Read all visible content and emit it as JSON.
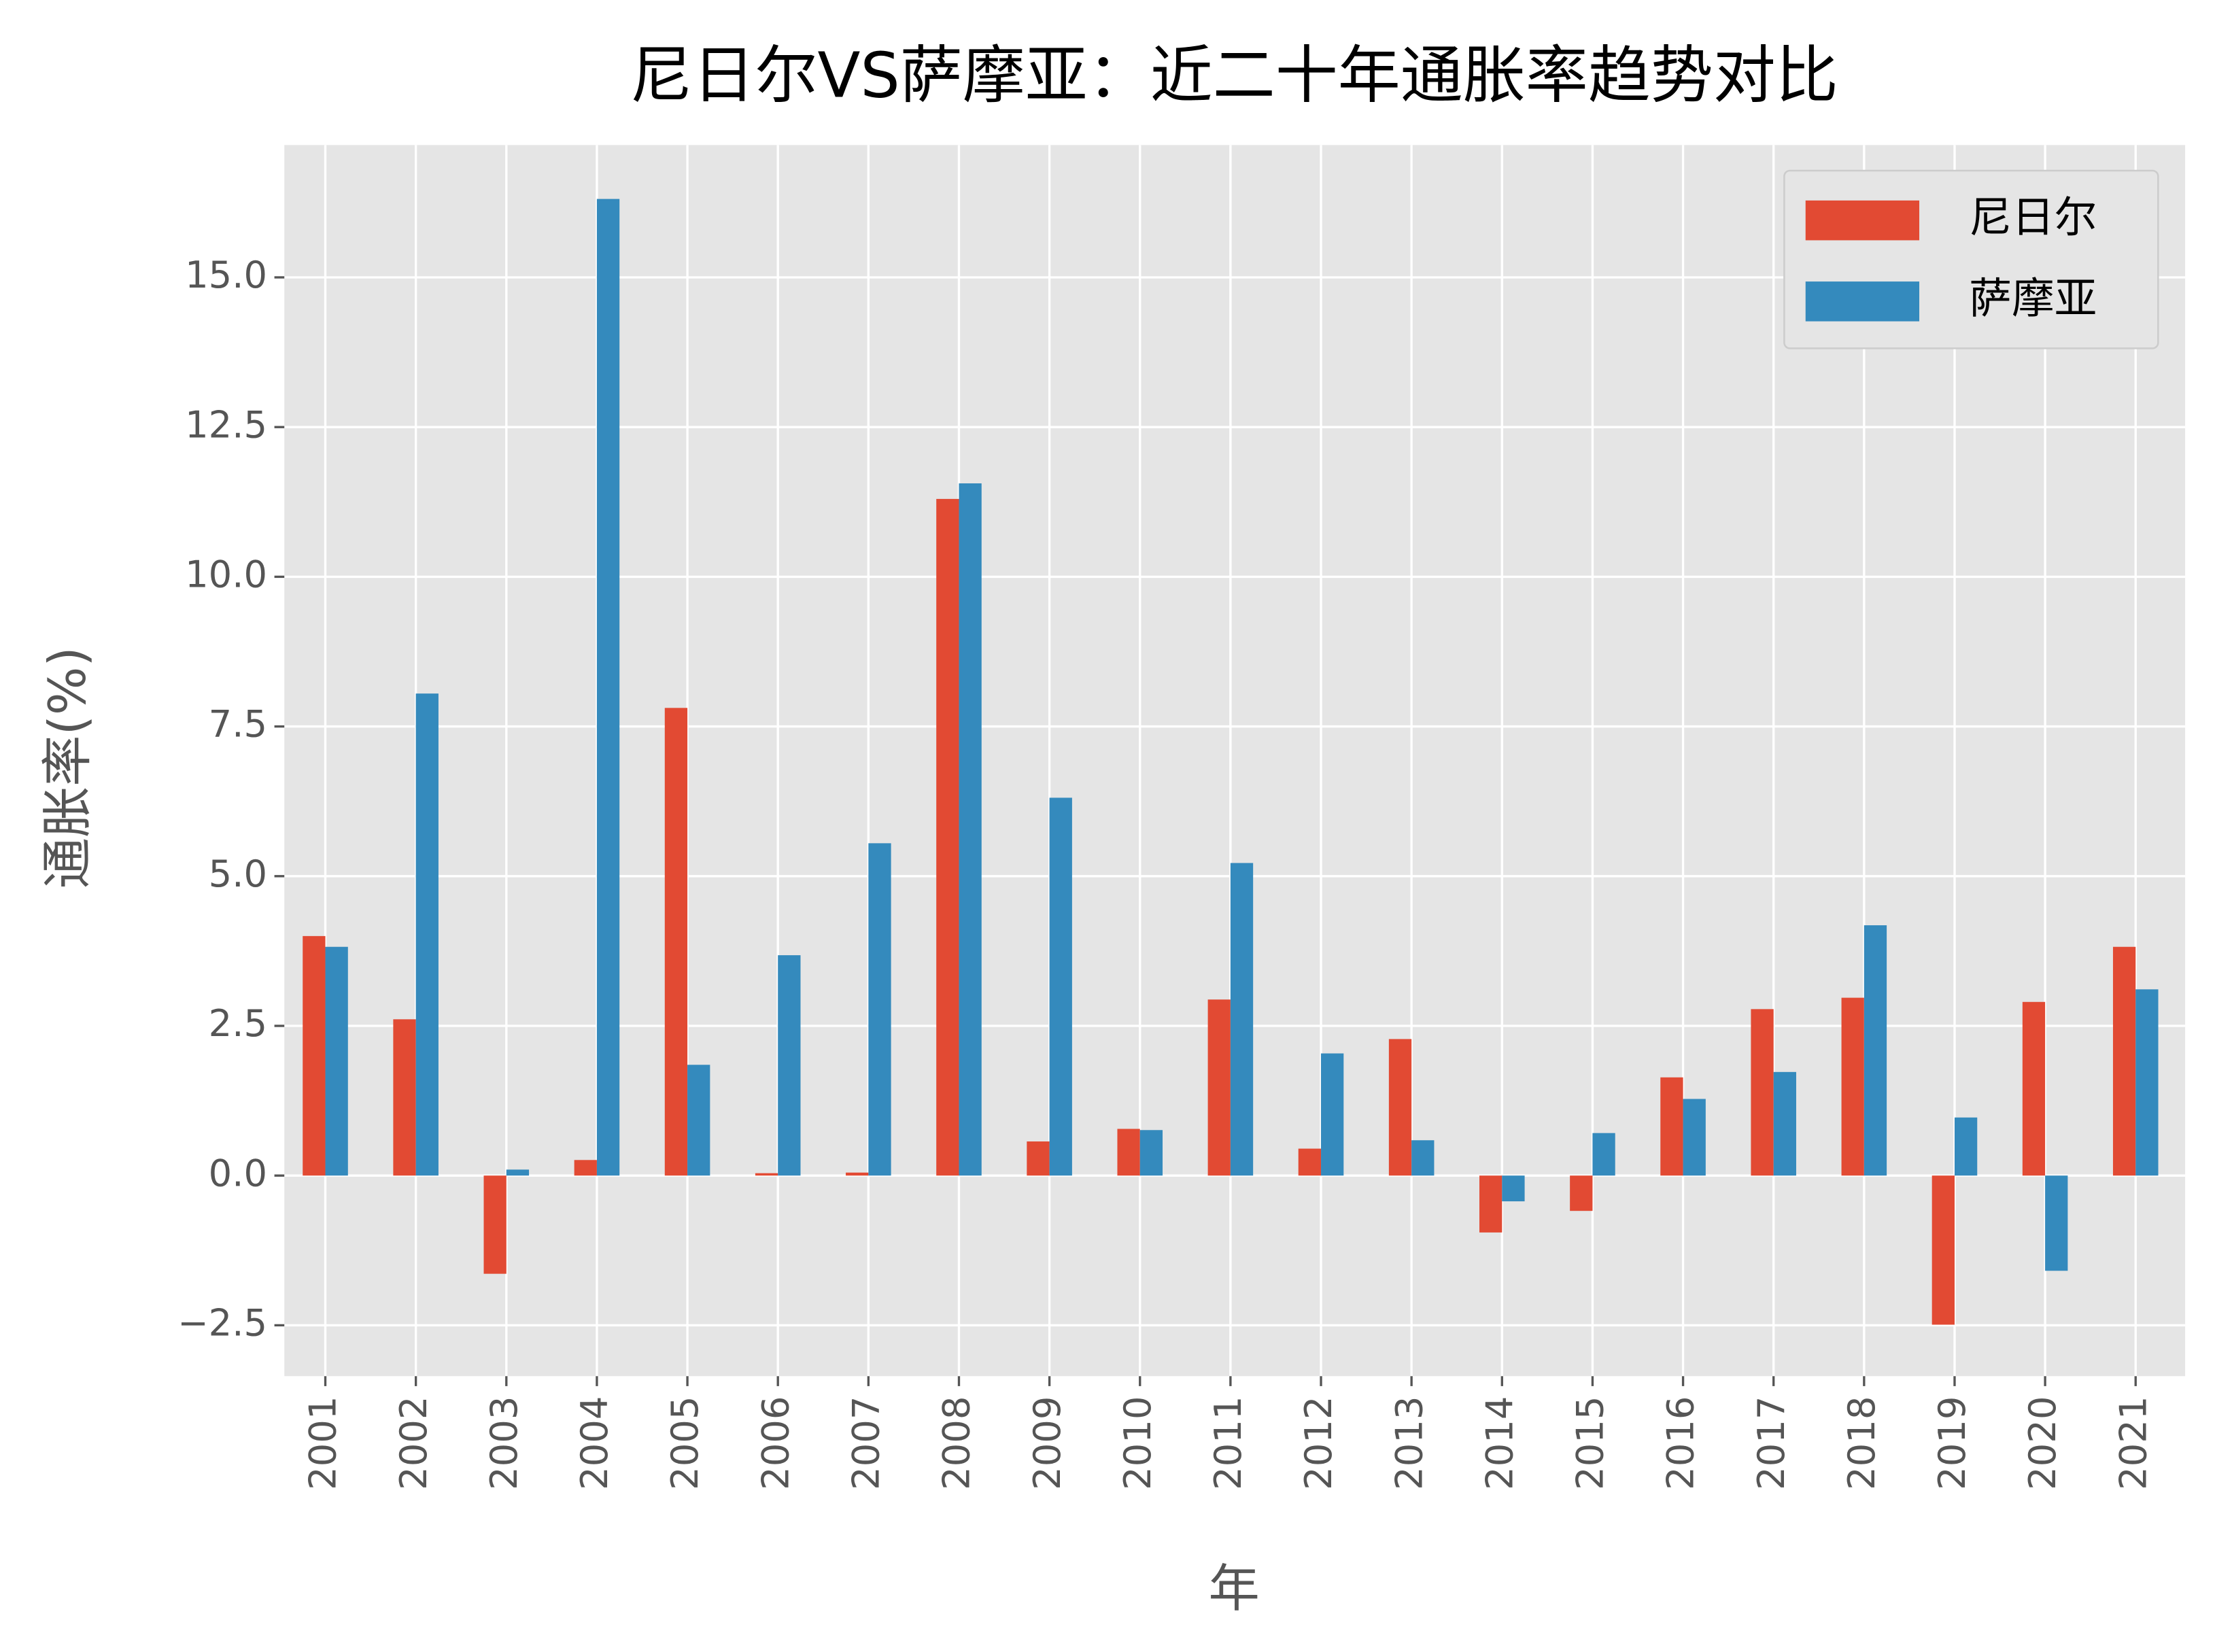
{
  "chart_data": {
    "type": "bar",
    "title": "尼日尔VS萨摩亚：近二十年通胀率趋势对比",
    "xlabel": "年",
    "ylabel": "通胀率(%)",
    "categories": [
      "2001",
      "2002",
      "2003",
      "2004",
      "2005",
      "2006",
      "2007",
      "2008",
      "2009",
      "2010",
      "2011",
      "2012",
      "2013",
      "2014",
      "2015",
      "2016",
      "2017",
      "2018",
      "2019",
      "2020",
      "2021"
    ],
    "series": [
      {
        "name": "尼日尔",
        "color": "#E24A33",
        "values": [
          4.0,
          2.61,
          -1.64,
          0.26,
          7.81,
          0.04,
          0.05,
          11.3,
          0.57,
          0.78,
          2.94,
          0.45,
          2.28,
          -0.95,
          -0.59,
          1.64,
          2.78,
          2.97,
          -2.49,
          2.9,
          3.82
        ]
      },
      {
        "name": "萨摩亚",
        "color": "#348ABD",
        "values": [
          3.82,
          8.05,
          0.1,
          16.31,
          1.85,
          3.68,
          5.55,
          11.56,
          6.31,
          0.76,
          5.22,
          2.04,
          0.59,
          -0.43,
          0.71,
          1.28,
          1.73,
          4.18,
          0.97,
          -1.59,
          3.11
        ]
      }
    ],
    "ylim": [
      -3.35,
      17.21
    ],
    "yticks": [
      {
        "value": -2.5,
        "label": "−2.5"
      },
      {
        "value": 0,
        "label": "0.0"
      },
      2.5,
      {
        "value": 5,
        "label": "5.0"
      },
      7.5,
      {
        "value": 10,
        "label": "10.0"
      },
      12.5,
      {
        "value": 15,
        "label": "15.0"
      }
    ],
    "grid": true,
    "legend": "upper right"
  }
}
